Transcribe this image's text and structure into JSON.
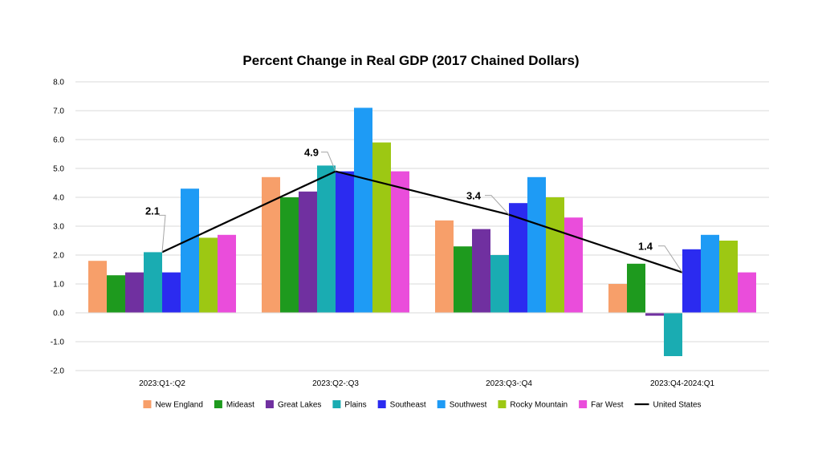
{
  "chart_data": {
    "type": "bar",
    "title": "Percent Change in Real GDP (2017 Chained Dollars)",
    "xlabel": "",
    "ylabel": "",
    "ylim": [
      -2.0,
      8.0
    ],
    "yticks": [
      "8.0",
      "7.0",
      "6.0",
      "5.0",
      "4.0",
      "3.0",
      "2.0",
      "1.0",
      "0.0",
      "-1.0",
      "-2.0"
    ],
    "ytick_values": [
      8,
      7,
      6,
      5,
      4,
      3,
      2,
      1,
      0,
      -1,
      -2
    ],
    "grid": true,
    "legend_position": "bottom",
    "categories": [
      "2023:Q1-:Q2",
      "2023:Q2-:Q3",
      "2023:Q3-:Q4",
      "2023:Q4-2024:Q1"
    ],
    "series": [
      {
        "name": "New England",
        "color": "#F79F6A",
        "values": [
          1.8,
          4.7,
          3.2,
          1.0
        ]
      },
      {
        "name": "Mideast",
        "color": "#1E9A1E",
        "values": [
          1.3,
          4.0,
          2.3,
          1.7
        ]
      },
      {
        "name": "Great Lakes",
        "color": "#7030A0",
        "values": [
          1.4,
          4.2,
          2.9,
          -0.1
        ]
      },
      {
        "name": "Plains",
        "color": "#1AACB2",
        "values": [
          2.1,
          5.1,
          2.0,
          -1.5
        ]
      },
      {
        "name": "Southeast",
        "color": "#2B2BF0",
        "values": [
          1.4,
          4.9,
          3.8,
          2.2
        ]
      },
      {
        "name": "Southwest",
        "color": "#1E9BF5",
        "values": [
          4.3,
          7.1,
          4.7,
          2.7
        ]
      },
      {
        "name": "Rocky Mountain",
        "color": "#9DC813",
        "values": [
          2.6,
          5.9,
          4.0,
          2.5
        ]
      },
      {
        "name": "Far West",
        "color": "#EA4DDB",
        "values": [
          2.7,
          4.9,
          3.3,
          1.4
        ]
      }
    ],
    "line_series": {
      "name": "United States",
      "color": "#000000",
      "values": [
        2.1,
        4.9,
        3.4,
        1.4
      ],
      "labels": [
        "2.1",
        "4.9",
        "3.4",
        "1.4"
      ]
    }
  }
}
